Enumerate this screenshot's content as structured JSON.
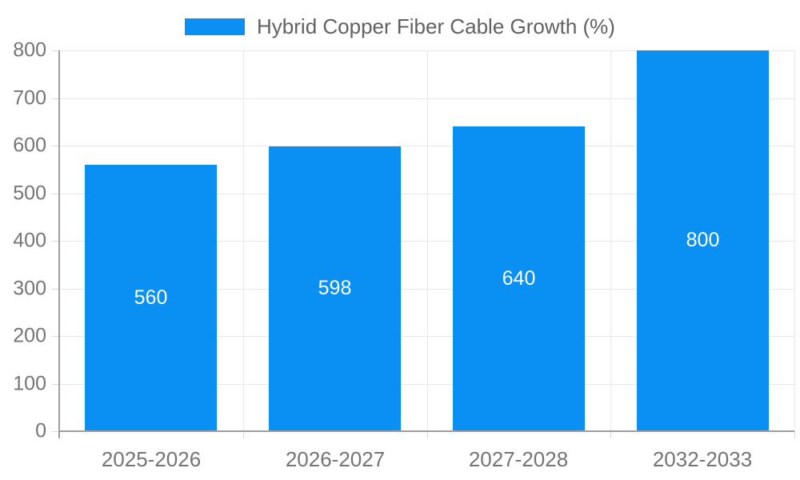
{
  "legend": {
    "label": "Hybrid Copper Fiber Cable Growth (%)"
  },
  "colors": {
    "bar": "#0A8FF2",
    "bar_label": "#ffffff",
    "axis_label": "#757575",
    "legend_text": "#616161",
    "grid": "#e8e8e8",
    "axis_line": "#9e9e9e"
  },
  "chart_data": {
    "type": "bar",
    "title": "Hybrid Copper Fiber Cable Growth (%)",
    "categories": [
      "2025-2026",
      "2026-2027",
      "2027-2028",
      "2032-2033"
    ],
    "values": [
      560,
      598,
      640,
      800
    ],
    "bar_labels": [
      "560",
      "598",
      "640",
      "800"
    ],
    "yticks": [
      0,
      100,
      200,
      300,
      400,
      500,
      600,
      700,
      800
    ],
    "ylim": [
      0,
      800
    ],
    "xlabel": "",
    "ylabel": "",
    "grid": true,
    "legend_position": "top-center",
    "bar_label_position": "inside-middle"
  }
}
